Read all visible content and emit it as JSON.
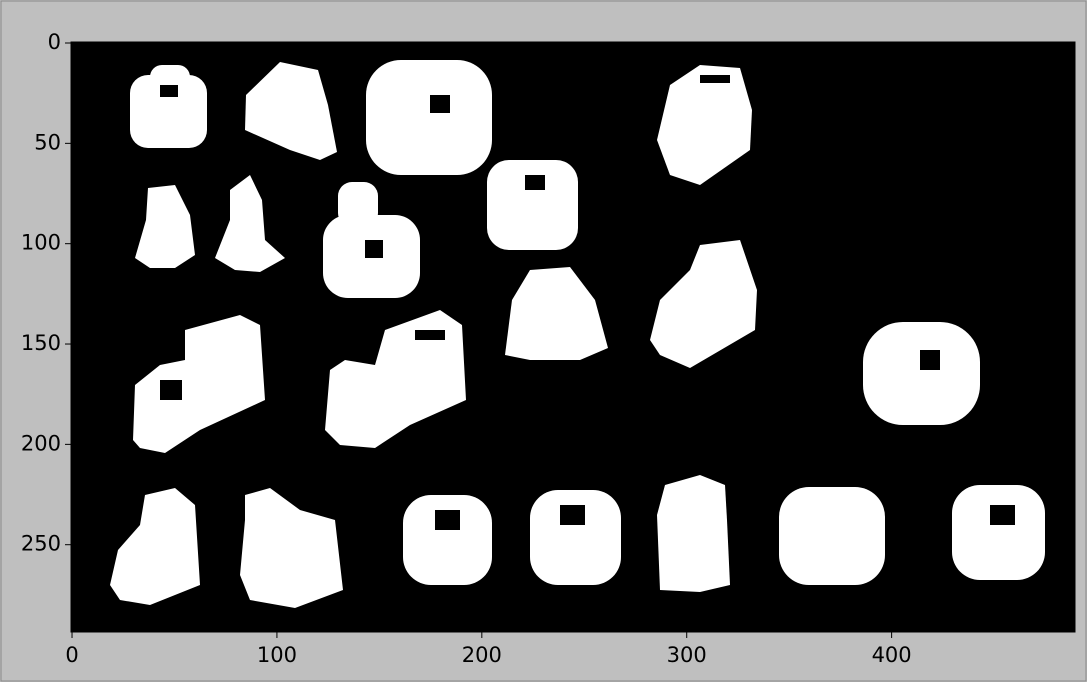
{
  "chart_data": {
    "type": "image",
    "xlim": [
      -0.5,
      489.5
    ],
    "ylim": [
      293.5,
      -0.5
    ],
    "xticks": [
      0,
      100,
      200,
      300,
      400
    ],
    "yticks": [
      0,
      50,
      100,
      150,
      200,
      250
    ]
  }
}
